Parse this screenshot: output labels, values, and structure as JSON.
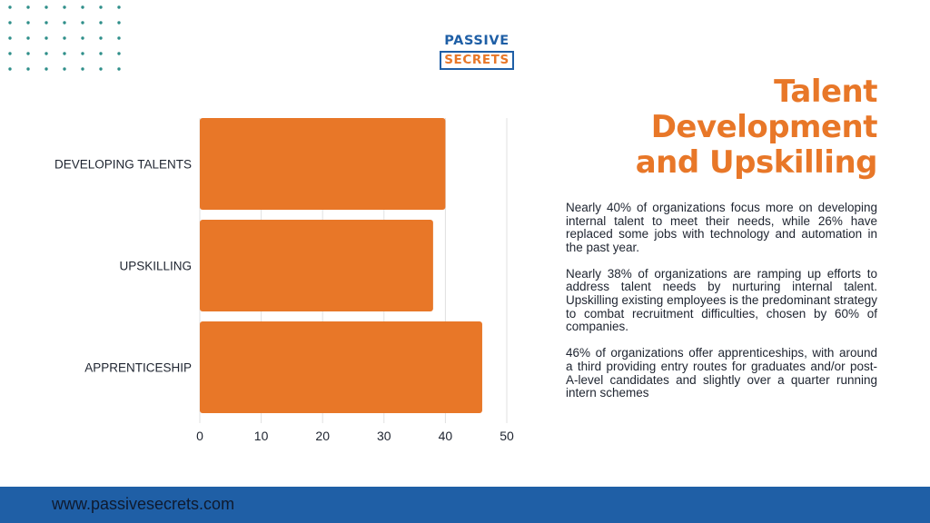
{
  "logo": {
    "line1": "PASSIVE",
    "line2": "SECRETS"
  },
  "title": {
    "line1": "Talent",
    "line2": "Development",
    "line3": "and Upskilling"
  },
  "paragraphs": [
    "Nearly 40% of organizations focus more on developing internal talent to meet their needs, while 26% have replaced some jobs with technology and automation in the past year.",
    "Nearly 38% of organizations are ramping up efforts to address talent needs by nurturing internal talent. Upskilling existing employees is the predominant strategy to combat recruitment difficulties, chosen by 60% of companies.",
    "46% of organizations offer apprenticeships, with around a third providing entry routes for graduates and/or post-A-level candidates and slightly over a quarter running intern schemes"
  ],
  "footer": {
    "url": "www.passivesecrets.com"
  },
  "colors": {
    "accent": "#e87728",
    "brand_blue": "#1f5fa6",
    "grid": "#e0e0e0",
    "dots": "#2f8f8a"
  },
  "chart_data": {
    "type": "bar",
    "orientation": "horizontal",
    "categories": [
      "DEVELOPING TALENTS",
      "UPSKILLING",
      "APPRENTICESHIP"
    ],
    "values": [
      40,
      38,
      46
    ],
    "xlim": [
      0,
      50
    ],
    "xticks": [
      0,
      10,
      20,
      30,
      40,
      50
    ],
    "grid": true,
    "legend": "none"
  }
}
